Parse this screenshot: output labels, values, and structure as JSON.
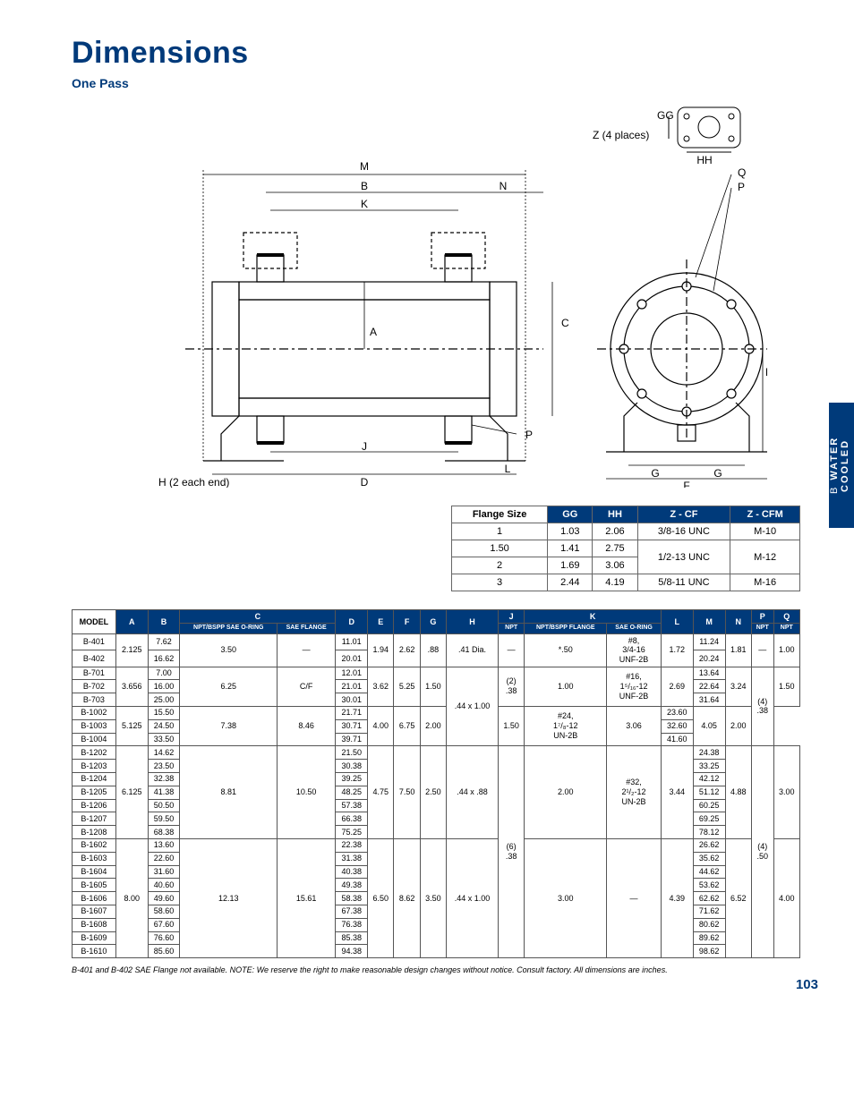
{
  "title": "Dimensions",
  "subtitle": "One Pass",
  "sidebar": {
    "text": "WATER COOLED",
    "suffix": "B"
  },
  "diagram_labels": {
    "GG": "GG",
    "Z4": "Z (4 places)",
    "HH": "HH",
    "Q": "Q",
    "P": "P",
    "M": "M",
    "B": "B",
    "N": "N",
    "K": "K",
    "A": "A",
    "C": "C",
    "E": "E",
    "J": "J",
    "L": "L",
    "D": "D",
    "H2": "H (2 each end)",
    "G": "G",
    "F": "F"
  },
  "flange_table": {
    "headers": [
      "Flange Size",
      "GG",
      "HH",
      "Z - CF",
      "Z - CFM"
    ],
    "rows": [
      {
        "size": "1",
        "gg": "1.03",
        "hh": "2.06",
        "zcf": "3/8-16 UNC",
        "zcfm": "M-10",
        "zcf_rowspan": 1,
        "zcfm_rowspan": 1
      },
      {
        "size": "1.50",
        "gg": "1.41",
        "hh": "2.75",
        "zcf": "1/2-13 UNC",
        "zcfm": "M-12",
        "zcf_rowspan": 2,
        "zcfm_rowspan": 2
      },
      {
        "size": "2",
        "gg": "1.69",
        "hh": "3.06"
      },
      {
        "size": "3",
        "gg": "2.44",
        "hh": "4.19",
        "zcf": "5/8-11 UNC",
        "zcfm": "M-16",
        "zcf_rowspan": 1,
        "zcfm_rowspan": 1
      }
    ]
  },
  "main_table": {
    "headers_top": [
      "A",
      "B",
      "C",
      "D",
      "E",
      "F",
      "G",
      "H",
      "J",
      "K",
      "L",
      "M",
      "N",
      "P",
      "Q"
    ],
    "sub_c": [
      "NPT/BSPP SAE O-RING",
      "SAE FLANGE"
    ],
    "sub_j": [
      "NPT"
    ],
    "sub_k": [
      "NPT/BSPP FLANGE",
      "SAE O-RING"
    ],
    "sub_p": [
      "NPT"
    ],
    "sub_q": [
      "NPT"
    ],
    "groups": [
      {
        "models": [
          "B-401",
          "B-402"
        ],
        "A": "2.125",
        "B": [
          "7.62",
          "16.62"
        ],
        "C1": "3.50",
        "C2": "—",
        "D": [
          "11.01",
          "20.01"
        ],
        "E": "1.94",
        "F": "2.62",
        "G": ".88",
        "H": ".41 Dia.",
        "J": "—",
        "K1": "*.50",
        "K2": "#8, 3/4-16 UNF-2B",
        "L": "1.72",
        "M": [
          "11.24",
          "20.24"
        ],
        "N": "1.81",
        "P": "—",
        "Q": "1.00"
      },
      {
        "models": [
          "B-701",
          "B-702",
          "B-703"
        ],
        "A": "3.656",
        "B": [
          "7.00",
          "16.00",
          "25.00"
        ],
        "C1": "6.25",
        "C2": "C/F",
        "D": [
          "12.01",
          "21.01",
          "30.01"
        ],
        "E": "3.62",
        "F": "5.25",
        "G": "1.50",
        "H": ".44 x 1.00",
        "H_rowspan": 6,
        "J": "(2) .38",
        "K1": "1.00",
        "K2": "#16, 1⁵/₁₆-12 UNF-2B",
        "L": "2.69",
        "M": [
          "13.64",
          "22.64",
          "31.64"
        ],
        "N": "3.24",
        "P": "(4) .38",
        "P_rowspan": 6,
        "Q": "1.50"
      },
      {
        "models": [
          "B-1002",
          "B-1003",
          "B-1004"
        ],
        "A": "5.125",
        "B": [
          "15.50",
          "24.50",
          "33.50"
        ],
        "C1": "7.38",
        "C2": "8.46",
        "D": [
          "21.71",
          "30.71",
          "39.71"
        ],
        "E": "4.00",
        "F": "6.75",
        "G": "2.00",
        "J_omit": true,
        "K1": "1.50",
        "K2": "#24, 1⁷/₈-12 UN-2B",
        "L": "3.06",
        "M": [
          "23.60",
          "32.60",
          "41.60"
        ],
        "N": "4.05",
        "Q": "2.00"
      },
      {
        "models": [
          "B-1202",
          "B-1203",
          "B-1204",
          "B-1205",
          "B-1206",
          "B-1207",
          "B-1208"
        ],
        "A": "6.125",
        "B": [
          "14.62",
          "23.50",
          "32.38",
          "41.38",
          "50.50",
          "59.50",
          "68.38"
        ],
        "C1": "8.81",
        "C2": "10.50",
        "D": [
          "21.50",
          "30.38",
          "39.25",
          "48.25",
          "57.38",
          "66.38",
          "75.25"
        ],
        "E": "4.75",
        "F": "7.50",
        "G": "2.50",
        "H": ".44 x .88",
        "J": "(6) .38",
        "J_rowspan": 16,
        "K1": "2.00",
        "K2": "#32, 2¹/₂-12 UN-2B",
        "L": "3.44",
        "M": [
          "24.38",
          "33.25",
          "42.12",
          "51.12",
          "60.25",
          "69.25",
          "78.12"
        ],
        "N": "4.88",
        "P": "(4) .50",
        "P_rowspan": 16,
        "Q": "3.00"
      },
      {
        "models": [
          "B-1602",
          "B-1603",
          "B-1604",
          "B-1605",
          "B-1606",
          "B-1607",
          "B-1608",
          "B-1609",
          "B-1610"
        ],
        "A": "8.00",
        "B": [
          "13.60",
          "22.60",
          "31.60",
          "40.60",
          "49.60",
          "58.60",
          "67.60",
          "76.60",
          "85.60"
        ],
        "C1": "12.13",
        "C2": "15.61",
        "D": [
          "22.38",
          "31.38",
          "40.38",
          "49.38",
          "58.38",
          "67.38",
          "76.38",
          "85.38",
          "94.38"
        ],
        "E": "6.50",
        "F": "8.62",
        "G": "3.50",
        "H": ".44 x 1.00",
        "K1": "3.00",
        "K2": "—",
        "L": "4.39",
        "M": [
          "26.62",
          "35.62",
          "44.62",
          "53.62",
          "62.62",
          "71.62",
          "80.62",
          "89.62",
          "98.62"
        ],
        "N": "6.52",
        "Q": "4.00"
      }
    ]
  },
  "footnote": "B-401 and B-402 SAE Flange not available. NOTE: We reserve the right to make reasonable design changes without notice. Consult factory. All dimensions are inches.",
  "pagenum": "103",
  "diagram_style": {
    "stroke": "#000",
    "fill": "none",
    "stroke_width": 1,
    "bg": "#ffffff",
    "text_font": "11px Arial",
    "text_color": "#000"
  }
}
